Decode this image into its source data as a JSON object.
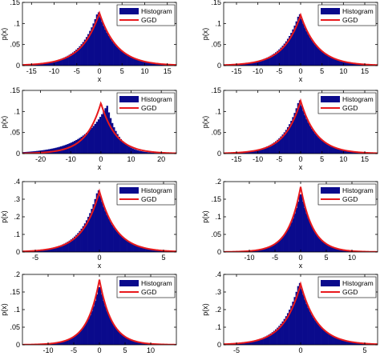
{
  "colors": {
    "histogram": "#0a0a8c",
    "ggd": "#e8191c",
    "axis": "#000000",
    "background": "#ffffff"
  },
  "chart_data": [
    {
      "type": "bar",
      "xlabel": "x",
      "ylabel": "p(x)",
      "xlim": [
        -17,
        17
      ],
      "ylim": [
        0,
        0.15
      ],
      "xticks": [
        -15,
        -10,
        -5,
        0,
        5,
        10,
        15
      ],
      "yticks": [
        0,
        0.05,
        0.1,
        0.15
      ],
      "legend_position": "top-right",
      "series": [
        {
          "name": "Histogram",
          "kind": "histogram",
          "peak": 0.13,
          "mode": -0.3,
          "scale": 3.9
        },
        {
          "name": "GGD",
          "kind": "line",
          "peak": 0.125,
          "mode": 0,
          "scale": 3.9
        }
      ]
    },
    {
      "type": "bar",
      "xlabel": "x",
      "ylabel": "p(x)",
      "xlim": [
        -18,
        18
      ],
      "ylim": [
        0,
        0.15
      ],
      "xticks": [
        -15,
        -10,
        -5,
        0,
        5,
        10,
        15
      ],
      "yticks": [
        0,
        0.05,
        0.1,
        0.15
      ],
      "legend_position": "top-right",
      "series": [
        {
          "name": "Histogram",
          "kind": "histogram",
          "peak": 0.125,
          "mode": -0.3,
          "scale": 4.0
        },
        {
          "name": "GGD",
          "kind": "line",
          "peak": 0.12,
          "mode": 0,
          "scale": 4.0
        }
      ]
    },
    {
      "type": "bar",
      "xlabel": "x",
      "ylabel": "p(x)",
      "xlim": [
        -26,
        25
      ],
      "ylim": [
        0,
        0.15
      ],
      "xticks": [
        -20,
        -10,
        0,
        10,
        20
      ],
      "yticks": [
        0,
        0.05,
        0.1,
        0.15
      ],
      "legend_position": "top-right",
      "series": [
        {
          "name": "Histogram",
          "kind": "histogram",
          "peak": 0.115,
          "mode": 2.0,
          "scale_left": 8.0,
          "scale_right": 3.8
        },
        {
          "name": "GGD",
          "kind": "line",
          "peak": 0.12,
          "mode": 0,
          "scale": 5.0
        }
      ]
    },
    {
      "type": "bar",
      "xlabel": "x",
      "ylabel": "p(x)",
      "xlim": [
        -18,
        18
      ],
      "ylim": [
        0,
        0.15
      ],
      "xticks": [
        -15,
        -10,
        -5,
        0,
        5,
        10,
        15
      ],
      "yticks": [
        0,
        0.05,
        0.1,
        0.15
      ],
      "legend_position": "top-right",
      "series": [
        {
          "name": "Histogram",
          "kind": "histogram",
          "peak": 0.13,
          "mode": -0.3,
          "scale": 3.7
        },
        {
          "name": "GGD",
          "kind": "line",
          "peak": 0.125,
          "mode": 0,
          "scale": 3.7
        }
      ]
    },
    {
      "type": "bar",
      "xlabel": "x",
      "ylabel": "p(x)",
      "xlim": [
        -6,
        6
      ],
      "ylim": [
        0,
        0.4
      ],
      "xticks": [
        -5,
        0,
        5
      ],
      "yticks": [
        0,
        0.1,
        0.2,
        0.3,
        0.4
      ],
      "legend_position": "top-right",
      "series": [
        {
          "name": "Histogram",
          "kind": "histogram",
          "peak": 0.36,
          "mode": -0.1,
          "scale": 1.3
        },
        {
          "name": "GGD",
          "kind": "line",
          "peak": 0.345,
          "mode": 0,
          "scale": 1.3
        }
      ]
    },
    {
      "type": "bar",
      "xlabel": "x",
      "ylabel": "p(x)",
      "xlim": [
        -15,
        15
      ],
      "ylim": [
        0,
        0.2
      ],
      "xticks": [
        -10,
        -5,
        0,
        5,
        10
      ],
      "yticks": [
        0,
        0.05,
        0.1,
        0.15,
        0.2
      ],
      "legend_position": "top-right",
      "series": [
        {
          "name": "Histogram",
          "kind": "histogram",
          "peak": 0.175,
          "mode": 0,
          "scale": 2.5
        },
        {
          "name": "GGD",
          "kind": "line",
          "peak": 0.185,
          "mode": 0,
          "scale": 2.4
        }
      ]
    },
    {
      "type": "bar",
      "xlabel": "x",
      "ylabel": "p(x)",
      "xlim": [
        -15,
        15
      ],
      "ylim": [
        0,
        0.2
      ],
      "xticks": [
        -10,
        -5,
        0,
        5,
        10
      ],
      "yticks": [
        0,
        0.05,
        0.1,
        0.15,
        0.2
      ],
      "legend_position": "top-right",
      "series": [
        {
          "name": "Histogram",
          "kind": "histogram",
          "peak": 0.175,
          "mode": 0,
          "scale": 2.5
        },
        {
          "name": "GGD",
          "kind": "line",
          "peak": 0.185,
          "mode": 0,
          "scale": 2.4
        }
      ]
    },
    {
      "type": "bar",
      "xlabel": "x",
      "ylabel": "p(x)",
      "xlim": [
        -6,
        6
      ],
      "ylim": [
        0,
        0.4
      ],
      "xticks": [
        -5,
        0,
        5
      ],
      "yticks": [
        0,
        0.1,
        0.2,
        0.3,
        0.4
      ],
      "legend_position": "top-right",
      "series": [
        {
          "name": "Histogram",
          "kind": "histogram",
          "peak": 0.36,
          "mode": -0.1,
          "scale": 1.3
        },
        {
          "name": "GGD",
          "kind": "line",
          "peak": 0.345,
          "mode": 0,
          "scale": 1.3
        }
      ]
    }
  ]
}
